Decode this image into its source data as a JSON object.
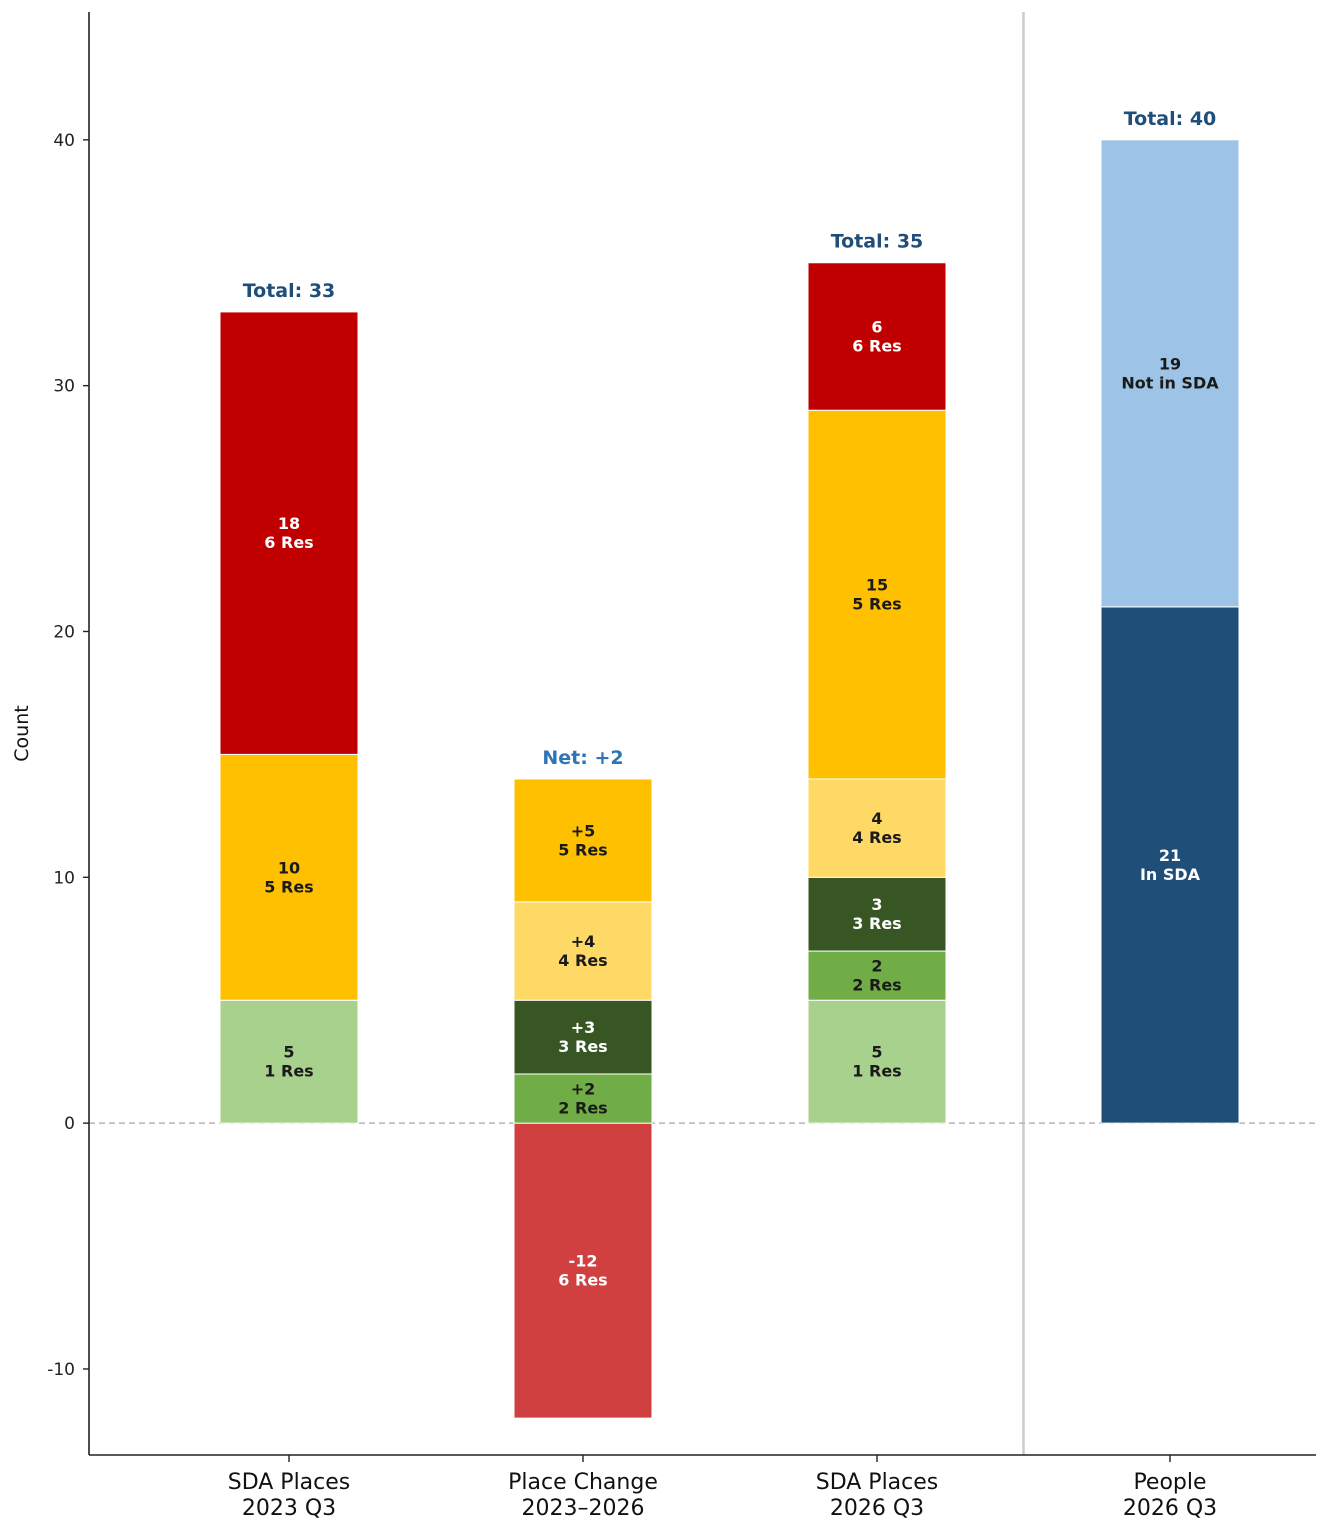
{
  "chart_data": {
    "type": "bar",
    "stacked": true,
    "ylabel": "Count",
    "ylim": [
      -13.5,
      45.2
    ],
    "yticks": [
      -10,
      0,
      10,
      20,
      30,
      40
    ],
    "zero_line": "dashed",
    "divider_after_category": 2,
    "categories": [
      {
        "line1": "SDA Places",
        "line2": "2023 Q3"
      },
      {
        "line1": "Place Change",
        "line2": "2023–2026"
      },
      {
        "line1": "SDA Places",
        "line2": "2026 Q3"
      },
      {
        "line1": "People",
        "line2": "2026 Q3"
      }
    ],
    "bars": [
      {
        "total_label": "Total: 33",
        "total_color": "#1f4e79",
        "segments": [
          {
            "value": 5,
            "label": "5",
            "sublabel": "1 Res",
            "color": "#a9d18e",
            "text_color": "#1a1a1a"
          },
          {
            "value": 10,
            "label": "10",
            "sublabel": "5 Res",
            "color": "#ffc000",
            "text_color": "#1a1a1a"
          },
          {
            "value": 18,
            "label": "18",
            "sublabel": "6 Res",
            "color": "#c00000",
            "text_color": "#ffffff"
          }
        ]
      },
      {
        "total_label": "Net: +2",
        "total_color": "#2e75b6",
        "segments": [
          {
            "value": -12,
            "label": "-12",
            "sublabel": "6 Res",
            "color": "#d04040",
            "text_color": "#ffffff"
          },
          {
            "value": 2,
            "label": "+2",
            "sublabel": "2 Res",
            "color": "#70ad47",
            "text_color": "#1a1a1a"
          },
          {
            "value": 3,
            "label": "+3",
            "sublabel": "3 Res",
            "color": "#375623",
            "text_color": "#ffffff"
          },
          {
            "value": 4,
            "label": "+4",
            "sublabel": "4 Res",
            "color": "#ffd966",
            "text_color": "#1a1a1a"
          },
          {
            "value": 5,
            "label": "+5",
            "sublabel": "5 Res",
            "color": "#ffc000",
            "text_color": "#1a1a1a"
          }
        ]
      },
      {
        "total_label": "Total: 35",
        "total_color": "#1f4e79",
        "segments": [
          {
            "value": 5,
            "label": "5",
            "sublabel": "1 Res",
            "color": "#a9d18e",
            "text_color": "#1a1a1a"
          },
          {
            "value": 2,
            "label": "2",
            "sublabel": "2 Res",
            "color": "#70ad47",
            "text_color": "#1a1a1a"
          },
          {
            "value": 3,
            "label": "3",
            "sublabel": "3 Res",
            "color": "#375623",
            "text_color": "#ffffff"
          },
          {
            "value": 4,
            "label": "4",
            "sublabel": "4 Res",
            "color": "#ffd966",
            "text_color": "#1a1a1a"
          },
          {
            "value": 15,
            "label": "15",
            "sublabel": "5 Res",
            "color": "#ffc000",
            "text_color": "#1a1a1a"
          },
          {
            "value": 6,
            "label": "6",
            "sublabel": "6 Res",
            "color": "#c00000",
            "text_color": "#ffffff"
          }
        ]
      },
      {
        "total_label": "Total: 40",
        "total_color": "#1f4e79",
        "segments": [
          {
            "value": 21,
            "label": "21",
            "sublabel": "In SDA",
            "color": "#1f4e79",
            "text_color": "#ffffff"
          },
          {
            "value": 19,
            "label": "19",
            "sublabel": "Not in SDA",
            "color": "#9dc3e6",
            "text_color": "#1a1a1a"
          }
        ]
      }
    ]
  }
}
